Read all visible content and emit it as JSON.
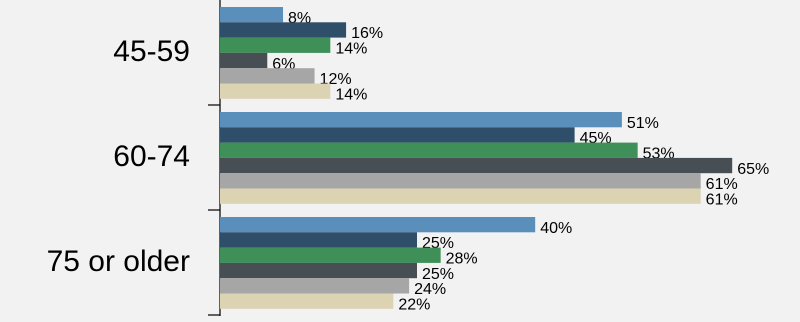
{
  "chart_data": {
    "type": "bar",
    "orientation": "horizontal",
    "categories": [
      "45-59",
      "60-74",
      "75 or older"
    ],
    "series": [
      {
        "color": "#5b8fbb",
        "values": [
          8,
          51,
          40
        ],
        "value_labels": [
          "8%",
          "51%",
          "40%"
        ]
      },
      {
        "color": "#2f4e69",
        "values": [
          16,
          45,
          25
        ],
        "value_labels": [
          "16%",
          "45%",
          "25%"
        ]
      },
      {
        "color": "#3f8f58",
        "values": [
          14,
          53,
          28
        ],
        "value_labels": [
          "14%",
          "53%",
          "28%"
        ]
      },
      {
        "color": "#474f55",
        "values": [
          6,
          65,
          25
        ],
        "value_labels": [
          "6%",
          "65%",
          "25%"
        ]
      },
      {
        "color": "#a6a6a6",
        "values": [
          12,
          61,
          24
        ],
        "value_labels": [
          "12%",
          "61%",
          "24%"
        ]
      },
      {
        "color": "#dcd3b3",
        "values": [
          14,
          61,
          22
        ],
        "value_labels": [
          "14%",
          "61%",
          "22%"
        ]
      }
    ]
  }
}
